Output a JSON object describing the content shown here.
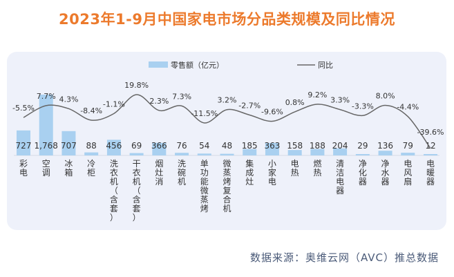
{
  "title": "2023年1-9月中国家电市场分品类规模及同比情况",
  "source": "数据来源：奥维云网（AVC）推总数据",
  "chart_data": {
    "type": "bar+line",
    "legend": {
      "bar": "零售额（亿元）",
      "line": "同比",
      "placement": "top"
    },
    "categories": [
      "彩电",
      "空调",
      "冰箱",
      "冷柜",
      "洗衣机（含套）",
      "干衣机（含套）",
      "烟灶消",
      "洗碗机",
      "单功能微蒸烤",
      "微蒸烤复合机",
      "集成灶",
      "小家电",
      "电热",
      "燃热",
      "清洁电器",
      "净化器",
      "净水器",
      "电风扇",
      "电暖器"
    ],
    "series": [
      {
        "name": "零售额（亿元）",
        "type": "bar",
        "color": "#a9d0f0",
        "values": [
          727,
          1768,
          707,
          88,
          456,
          69,
          366,
          76,
          54,
          48,
          185,
          363,
          158,
          188,
          204,
          29,
          136,
          79,
          12
        ],
        "labels": [
          "727",
          "1,768",
          "707",
          "88",
          "456",
          "69",
          "366",
          "76",
          "54",
          "48",
          "185",
          "363",
          "158",
          "188",
          "204",
          "29",
          "136",
          "79",
          "12"
        ]
      },
      {
        "name": "同比",
        "type": "line",
        "color": "#666666",
        "values": [
          -5.5,
          7.7,
          4.3,
          -8.4,
          -1.1,
          19.8,
          2.3,
          7.3,
          -11.5,
          3.2,
          -2.7,
          -9.6,
          0.8,
          9.2,
          3.3,
          -3.3,
          8.0,
          -4.4,
          -39.6
        ],
        "labels": [
          "-5.5%",
          "7.7%",
          "4.3%",
          "-8.4%",
          "-1.1%",
          "19.8%",
          "2.3%",
          "7.3%",
          "-11.5%",
          "3.2%",
          "-2.7%",
          "-9.6%",
          "0.8%",
          "9.2%",
          "3.3%",
          "-3.3%",
          "8.0%",
          "-4.4%",
          "-39.6%"
        ]
      }
    ]
  }
}
